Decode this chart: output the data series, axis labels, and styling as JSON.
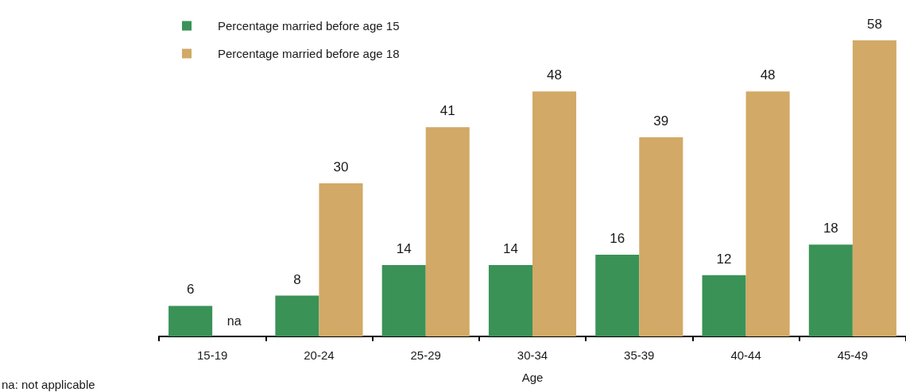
{
  "chart_data": {
    "type": "bar",
    "categories": [
      "15-19",
      "20-24",
      "25-29",
      "30-34",
      "35-39",
      "40-44",
      "45-49"
    ],
    "xlabel": "Age",
    "series": [
      {
        "name": "Percentage married before age 15",
        "color": "#3a9257",
        "values": [
          6,
          8,
          14,
          14,
          16,
          12,
          18
        ],
        "value_labels": [
          "6",
          "8",
          "14",
          "14",
          "16",
          "12",
          "18"
        ]
      },
      {
        "name": "Percentage married before age 18",
        "color": "#d2a966",
        "values": [
          null,
          30,
          41,
          48,
          39,
          48,
          58
        ],
        "value_labels": [
          "na",
          "30",
          "41",
          "48",
          "39",
          "48",
          "58"
        ]
      }
    ],
    "legend": "top left",
    "tick_labels": "x",
    "grid": false,
    "annotations": [
      "na: not applicable"
    ]
  }
}
